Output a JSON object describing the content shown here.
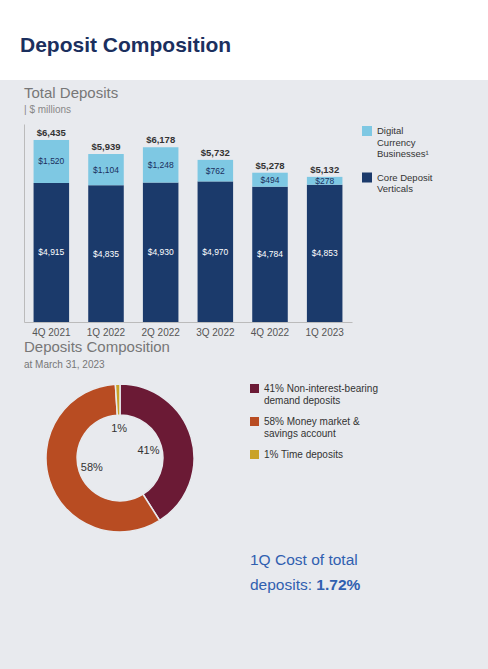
{
  "title": "Deposit Composition",
  "annotations": [
    "1Q Cost of total",
    "deposits: ",
    "1.72%"
  ],
  "chart_data": [
    {
      "type": "bar",
      "title": "Total Deposits",
      "subtitle": "| $ millions",
      "categories": [
        "4Q 2021",
        "1Q 2022",
        "2Q 2022",
        "3Q 2022",
        "4Q 2022",
        "1Q 2023"
      ],
      "series": [
        {
          "name": "Core Deposit\nVerticals",
          "color": "#1b3a6b",
          "values": [
            4915,
            4835,
            4930,
            4970,
            4784,
            4853
          ],
          "value_labels": [
            "$4,915",
            "$4,835",
            "$4,930",
            "$4,970",
            "$4,784",
            "$4,853"
          ]
        },
        {
          "name": "Digital\nCurrency\nBusinesses¹",
          "color": "#7ec8e3",
          "values": [
            1520,
            1104,
            1248,
            762,
            494,
            278
          ],
          "value_labels": [
            "$1,520",
            "$1,104",
            "$1,248",
            "$762",
            "$494",
            "$278"
          ]
        }
      ],
      "total_labels": [
        "$6,435",
        "$5,939",
        "$6,178",
        "$5,732",
        "$5,278",
        "$5,132"
      ],
      "ylim": [
        0,
        7000
      ],
      "stacked": true,
      "data_labels": true,
      "tick_labels": "x",
      "legend": "right"
    },
    {
      "type": "donut",
      "title": "Deposits Composition",
      "subtitle": "at March 31, 2023",
      "categories": [
        "41% Non-interest-bearing\ndemand deposits",
        "58% Money market &\nsavings account",
        "1% Time deposits"
      ],
      "values": [
        41,
        58,
        1
      ],
      "value_labels": [
        "41%",
        "58%",
        "1%"
      ],
      "colors": [
        "#6b1a35",
        "#b84c22",
        "#c9a227"
      ],
      "data_labels": true,
      "legend": "right"
    }
  ]
}
